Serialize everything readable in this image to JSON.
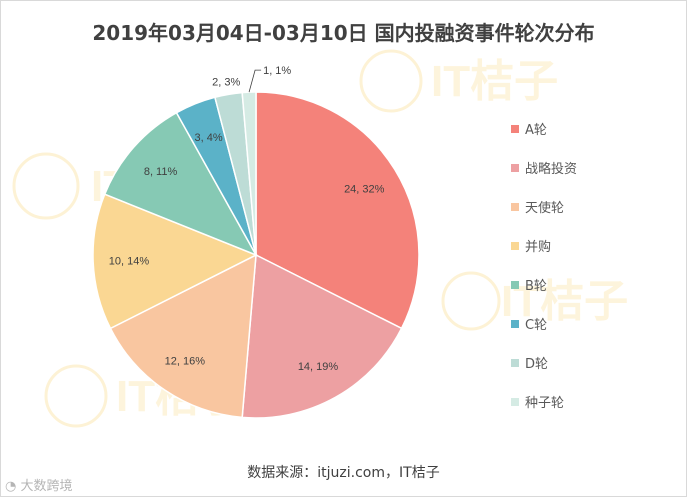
{
  "chart_data": {
    "type": "pie",
    "title": "2019年03月04日-03月10日 国内投融资事件轮次分布",
    "categories": [
      "A轮",
      "战略投资",
      "天使轮",
      "并购",
      "B轮",
      "C轮",
      "D轮",
      "种子轮"
    ],
    "values": [
      24,
      14,
      12,
      10,
      8,
      3,
      2,
      1
    ],
    "labels": [
      "24, 32%",
      "14, 19%",
      "12, 16%",
      "10, 14%",
      "8, 11%",
      "3, 4%",
      "2, 3%",
      "1, 1%"
    ],
    "colors": [
      "#F4827A",
      "#EDA0A2",
      "#F9C6A0",
      "#FAD793",
      "#86C9B4",
      "#5BB2C8",
      "#BDDCD6",
      "#D5EBE4"
    ],
    "legend_position": "right"
  },
  "source_text": "数据来源：itjuzi.com，IT桔子",
  "watermark_text": "大数跨境",
  "brand_watermark_text": "IT桔子"
}
